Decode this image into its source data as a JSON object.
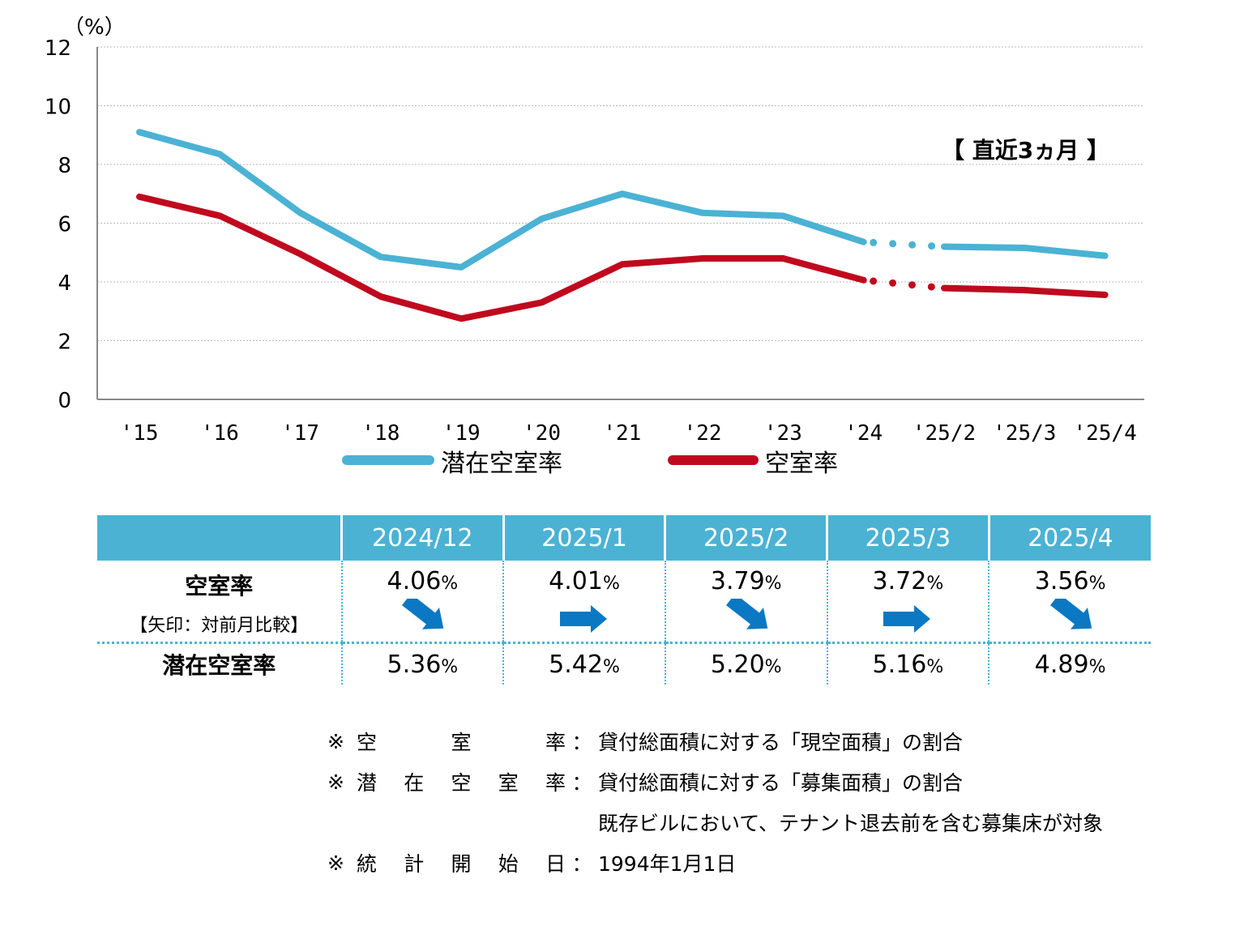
{
  "chart_data": {
    "type": "line",
    "y_unit_label": "（%）",
    "ylim": [
      0,
      12
    ],
    "yticks": [
      0,
      2,
      4,
      6,
      8,
      10,
      12
    ],
    "grid": true,
    "categories": [
      "'15",
      "'16",
      "'17",
      "'18",
      "'19",
      "'20",
      "'21",
      "'22",
      "'23",
      "'24",
      "'25/2",
      "'25/3",
      "'25/4"
    ],
    "annotation": "【 直近3ヵ月 】",
    "series": [
      {
        "name": "潜在空室率",
        "color": "#4bb2d4",
        "values": [
          9.1,
          8.35,
          6.35,
          4.85,
          4.5,
          6.15,
          7.0,
          6.35,
          6.25,
          5.36,
          5.2,
          5.16,
          4.89
        ]
      },
      {
        "name": "空室率",
        "color": "#c0091e",
        "values": [
          6.9,
          6.25,
          4.95,
          3.5,
          2.75,
          3.3,
          4.6,
          4.8,
          4.8,
          4.06,
          3.79,
          3.72,
          3.56
        ]
      }
    ]
  },
  "table": {
    "headers": [
      "2024/12",
      "2025/1",
      "2025/2",
      "2025/3",
      "2025/4"
    ],
    "vacancy_label": "空室率",
    "vacancy_note": "【矢印：対前月比較】",
    "vacancy_values": [
      "4.06",
      "4.01",
      "3.79",
      "3.72",
      "3.56"
    ],
    "arrows": [
      "down-right",
      "right",
      "down-right",
      "right",
      "down-right"
    ],
    "potential_label": "潜在空室率",
    "potential_values": [
      "5.36",
      "5.42",
      "5.20",
      "5.16",
      "4.89"
    ],
    "unit": "%",
    "arrow_color": "#0a78c2"
  },
  "notes": [
    {
      "mark": "※",
      "term": [
        "空",
        "室",
        "率"
      ],
      "colon": "：",
      "desc": "貸付総面積に対する「現空面積」の割合"
    },
    {
      "mark": "※",
      "term": [
        "潜",
        "在",
        "空",
        "室",
        "率"
      ],
      "colon": "：",
      "desc": "貸付総面積に対する「募集面積」の割合"
    },
    {
      "mark": "",
      "term": [],
      "colon": "",
      "desc": "既存ビルにおいて、テナント退去前を含む募集床が対象"
    },
    {
      "mark": "※",
      "term": [
        "統",
        "計",
        "開",
        "始",
        "日"
      ],
      "colon": "：",
      "desc": "1994年1月1日"
    }
  ]
}
